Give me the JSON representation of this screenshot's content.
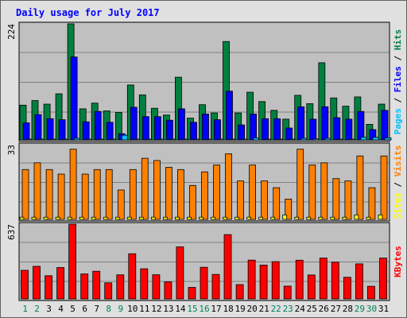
{
  "chart_data": [
    {
      "type": "bar",
      "title": "Daily usage for July 2017",
      "categories": [
        "1",
        "2",
        "3",
        "4",
        "5",
        "6",
        "7",
        "8",
        "9",
        "10",
        "11",
        "12",
        "13",
        "14",
        "15",
        "16",
        "17",
        "18",
        "19",
        "20",
        "21",
        "22",
        "23",
        "24",
        "25",
        "26",
        "27",
        "28",
        "29",
        "30",
        "31"
      ],
      "weekend_days": [
        "1",
        "2",
        "8",
        "9",
        "15",
        "16",
        "22",
        "23",
        "29",
        "30"
      ],
      "y_max_label": "224",
      "ylim": [
        0,
        224
      ],
      "series": [
        {
          "name": "Hits",
          "color": "#008040",
          "values": [
            67,
            76,
            69,
            89,
            224,
            60,
            71,
            56,
            53,
            106,
            87,
            61,
            48,
            121,
            42,
            68,
            52,
            190,
            52,
            92,
            74,
            57,
            40,
            86,
            70,
            149,
            81,
            65,
            83,
            30,
            69
          ]
        },
        {
          "name": "Files",
          "color": "#0000ff",
          "values": [
            33,
            49,
            41,
            39,
            160,
            35,
            55,
            34,
            12,
            63,
            45,
            45,
            38,
            60,
            34,
            50,
            39,
            94,
            29,
            50,
            41,
            41,
            23,
            64,
            40,
            64,
            43,
            40,
            55,
            20,
            57
          ]
        },
        {
          "name": "Pages",
          "color": "#00c0ff",
          "values": [
            1,
            1,
            1,
            1,
            3,
            1,
            1,
            1,
            9,
            1,
            1,
            1,
            1,
            1,
            1,
            1,
            1,
            1,
            1,
            4,
            1,
            1,
            1,
            3,
            2,
            3,
            1,
            1,
            5,
            5,
            4
          ]
        }
      ]
    },
    {
      "type": "bar",
      "categories": [
        "1",
        "2",
        "3",
        "4",
        "5",
        "6",
        "7",
        "8",
        "9",
        "10",
        "11",
        "12",
        "13",
        "14",
        "15",
        "16",
        "17",
        "18",
        "19",
        "20",
        "21",
        "22",
        "23",
        "24",
        "25",
        "26",
        "27",
        "28",
        "29",
        "30",
        "31"
      ],
      "y_max_label": "33",
      "ylim": [
        0,
        33
      ],
      "series": [
        {
          "name": "Visits",
          "color": "#ff8000",
          "values": [
            22,
            25,
            22,
            20,
            31,
            20,
            22,
            22,
            13,
            22,
            27,
            26,
            23,
            22,
            15,
            21,
            24,
            29,
            17,
            24,
            17,
            14,
            9,
            31,
            24,
            25,
            18,
            17,
            28,
            14,
            28
          ]
        },
        {
          "name": "Sites",
          "color": "#ffff00",
          "values": [
            1,
            1,
            1,
            1,
            1,
            1,
            1,
            1,
            1,
            1,
            1,
            1,
            1,
            1,
            1,
            1,
            1,
            1,
            1,
            1,
            1,
            1,
            2,
            1,
            1,
            1,
            1,
            1,
            2,
            1,
            2
          ]
        }
      ]
    },
    {
      "type": "bar",
      "categories": [
        "1",
        "2",
        "3",
        "4",
        "5",
        "6",
        "7",
        "8",
        "9",
        "10",
        "11",
        "12",
        "13",
        "14",
        "15",
        "16",
        "17",
        "18",
        "19",
        "20",
        "21",
        "22",
        "23",
        "24",
        "25",
        "26",
        "27",
        "28",
        "29",
        "30",
        "31"
      ],
      "y_max_label": "637",
      "ylim": [
        0,
        637
      ],
      "series": [
        {
          "name": "KBytes",
          "color": "#ff0000",
          "values": [
            244,
            278,
            198,
            268,
            637,
            213,
            236,
            137,
            205,
            385,
            257,
            206,
            146,
            444,
            98,
            270,
            209,
            548,
            122,
            331,
            289,
            318,
            109,
            330,
            204,
            348,
            313,
            184,
            299,
            108,
            348
          ]
        }
      ]
    }
  ]
}
